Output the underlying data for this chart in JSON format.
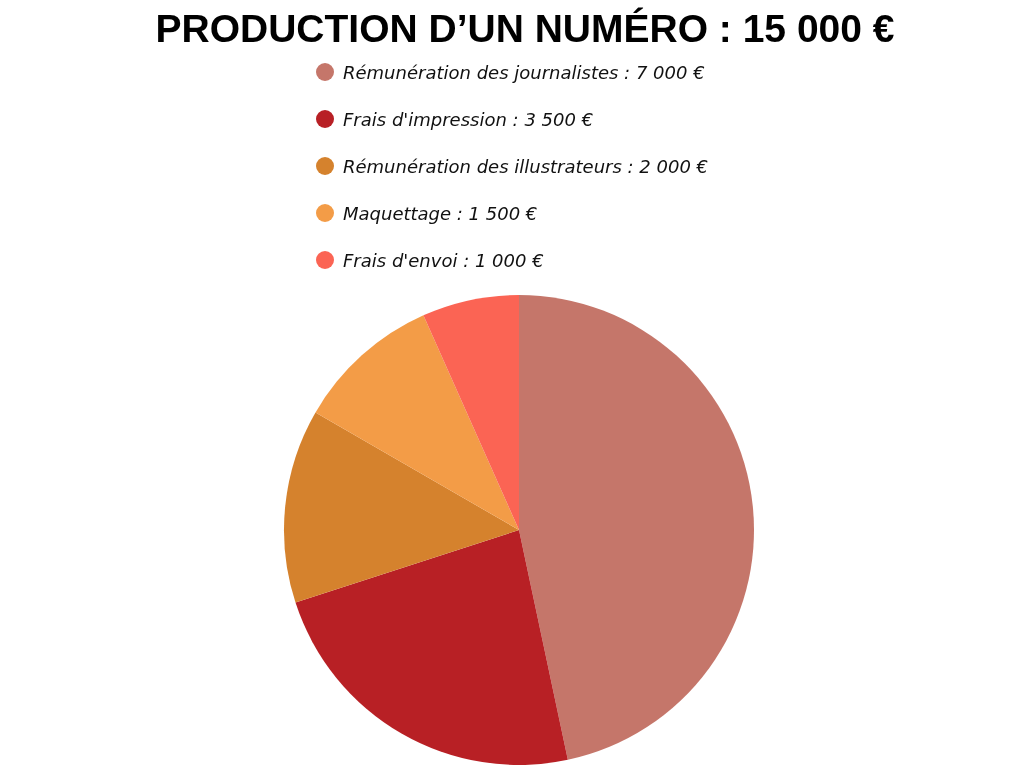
{
  "chart_data": {
    "type": "pie",
    "title": "PRODUCTION D’UN NUMÉRO : 15 000 €",
    "categories": [
      "Rémunération des journalistes : 7 000 €",
      "Frais d'impression : 3 500 €",
      "Rémunération des illustrateurs : 2 000 €",
      "Maquettage : 1 500 €",
      "Frais d'envoi : 1 000 €"
    ],
    "values": [
      7000,
      3500,
      2000,
      1500,
      1000
    ],
    "colors": [
      "#c5766a",
      "#b82025",
      "#d5822d",
      "#f39c47",
      "#fb6454"
    ],
    "legend": "top"
  }
}
